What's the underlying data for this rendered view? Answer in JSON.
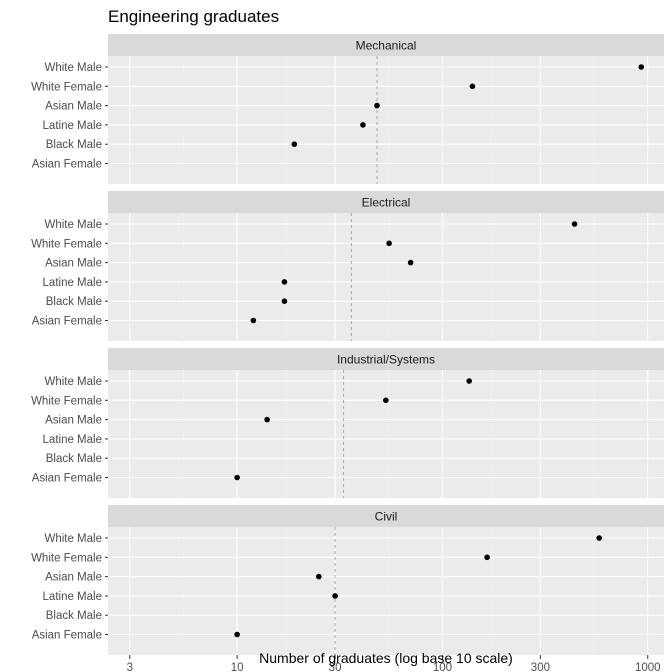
{
  "chart_data": {
    "type": "scatter",
    "title": "Engineering graduates",
    "xlabel": "Number of graduates (log base 10 scale)",
    "x_scale": "log10",
    "xlim": [
      2.35,
      1200
    ],
    "x_ticks": [
      {
        "value": 3,
        "label": "3"
      },
      {
        "value": 10,
        "label": "10"
      },
      {
        "value": 30,
        "label": "30"
      },
      {
        "value": 100,
        "label": "100"
      },
      {
        "value": 300,
        "label": "300"
      },
      {
        "value": 1000,
        "label": "1000"
      }
    ],
    "categories": [
      "White Male",
      "White Female",
      "Asian Male",
      "Latine Male",
      "Black Male",
      "Asian Female"
    ],
    "grid": true,
    "point_color": "#000000",
    "panels": [
      {
        "name": "Mechanical",
        "reference_line": 48,
        "points": [
          {
            "category": "White Male",
            "value": 930
          },
          {
            "category": "White Female",
            "value": 140
          },
          {
            "category": "Asian Male",
            "value": 48
          },
          {
            "category": "Latine Male",
            "value": 41
          },
          {
            "category": "Black Male",
            "value": 19
          }
        ]
      },
      {
        "name": "Electrical",
        "reference_line": 36,
        "points": [
          {
            "category": "White Male",
            "value": 440
          },
          {
            "category": "White Female",
            "value": 55
          },
          {
            "category": "Asian Male",
            "value": 70
          },
          {
            "category": "Latine Male",
            "value": 17
          },
          {
            "category": "Black Male",
            "value": 17
          },
          {
            "category": "Asian Female",
            "value": 12
          }
        ]
      },
      {
        "name": "Industrial/Systems",
        "reference_line": 33,
        "points": [
          {
            "category": "White Male",
            "value": 135
          },
          {
            "category": "White Female",
            "value": 53
          },
          {
            "category": "Asian Male",
            "value": 14
          },
          {
            "category": "Asian Female",
            "value": 10
          }
        ]
      },
      {
        "name": "Civil",
        "reference_line": 30,
        "points": [
          {
            "category": "White Male",
            "value": 580
          },
          {
            "category": "White Female",
            "value": 165
          },
          {
            "category": "Asian Male",
            "value": 25
          },
          {
            "category": "Latine Male",
            "value": 30
          },
          {
            "category": "Asian Female",
            "value": 10
          }
        ]
      }
    ]
  }
}
